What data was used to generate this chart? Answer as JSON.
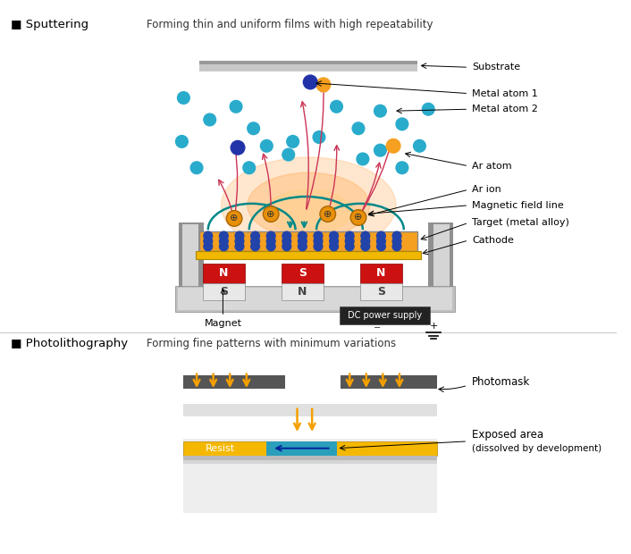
{
  "bg_color": "#ffffff",
  "title_sputter": "■ Sputtering",
  "subtitle_sputter": "Forming thin and uniform films with high repeatability",
  "title_photo": "■ Photolithography",
  "subtitle_photo": "Forming fine patterns with minimum variations",
  "cyan_atom_color": "#29ABCC",
  "orange_atom_color": "#F5A020",
  "blue_atom_color": "#2244AA",
  "pink_arrow_color": "#CC3355",
  "teal_arrow_color": "#008888",
  "orange_glow_color": "#FFA040",
  "target_orange": "#F5A020",
  "target_blue_dot": "#2244AA",
  "cathode_gold": "#F0B800",
  "magnet_red": "#CC1111",
  "dc_box_color": "#222222",
  "photomask_gray": "#555555",
  "resist_yellow": "#F5B800",
  "resist_blue": "#2A9FBB",
  "pillar_dark": "#A0A0A0",
  "pillar_light": "#D0D0D0",
  "base_gray": "#C0C0C0"
}
